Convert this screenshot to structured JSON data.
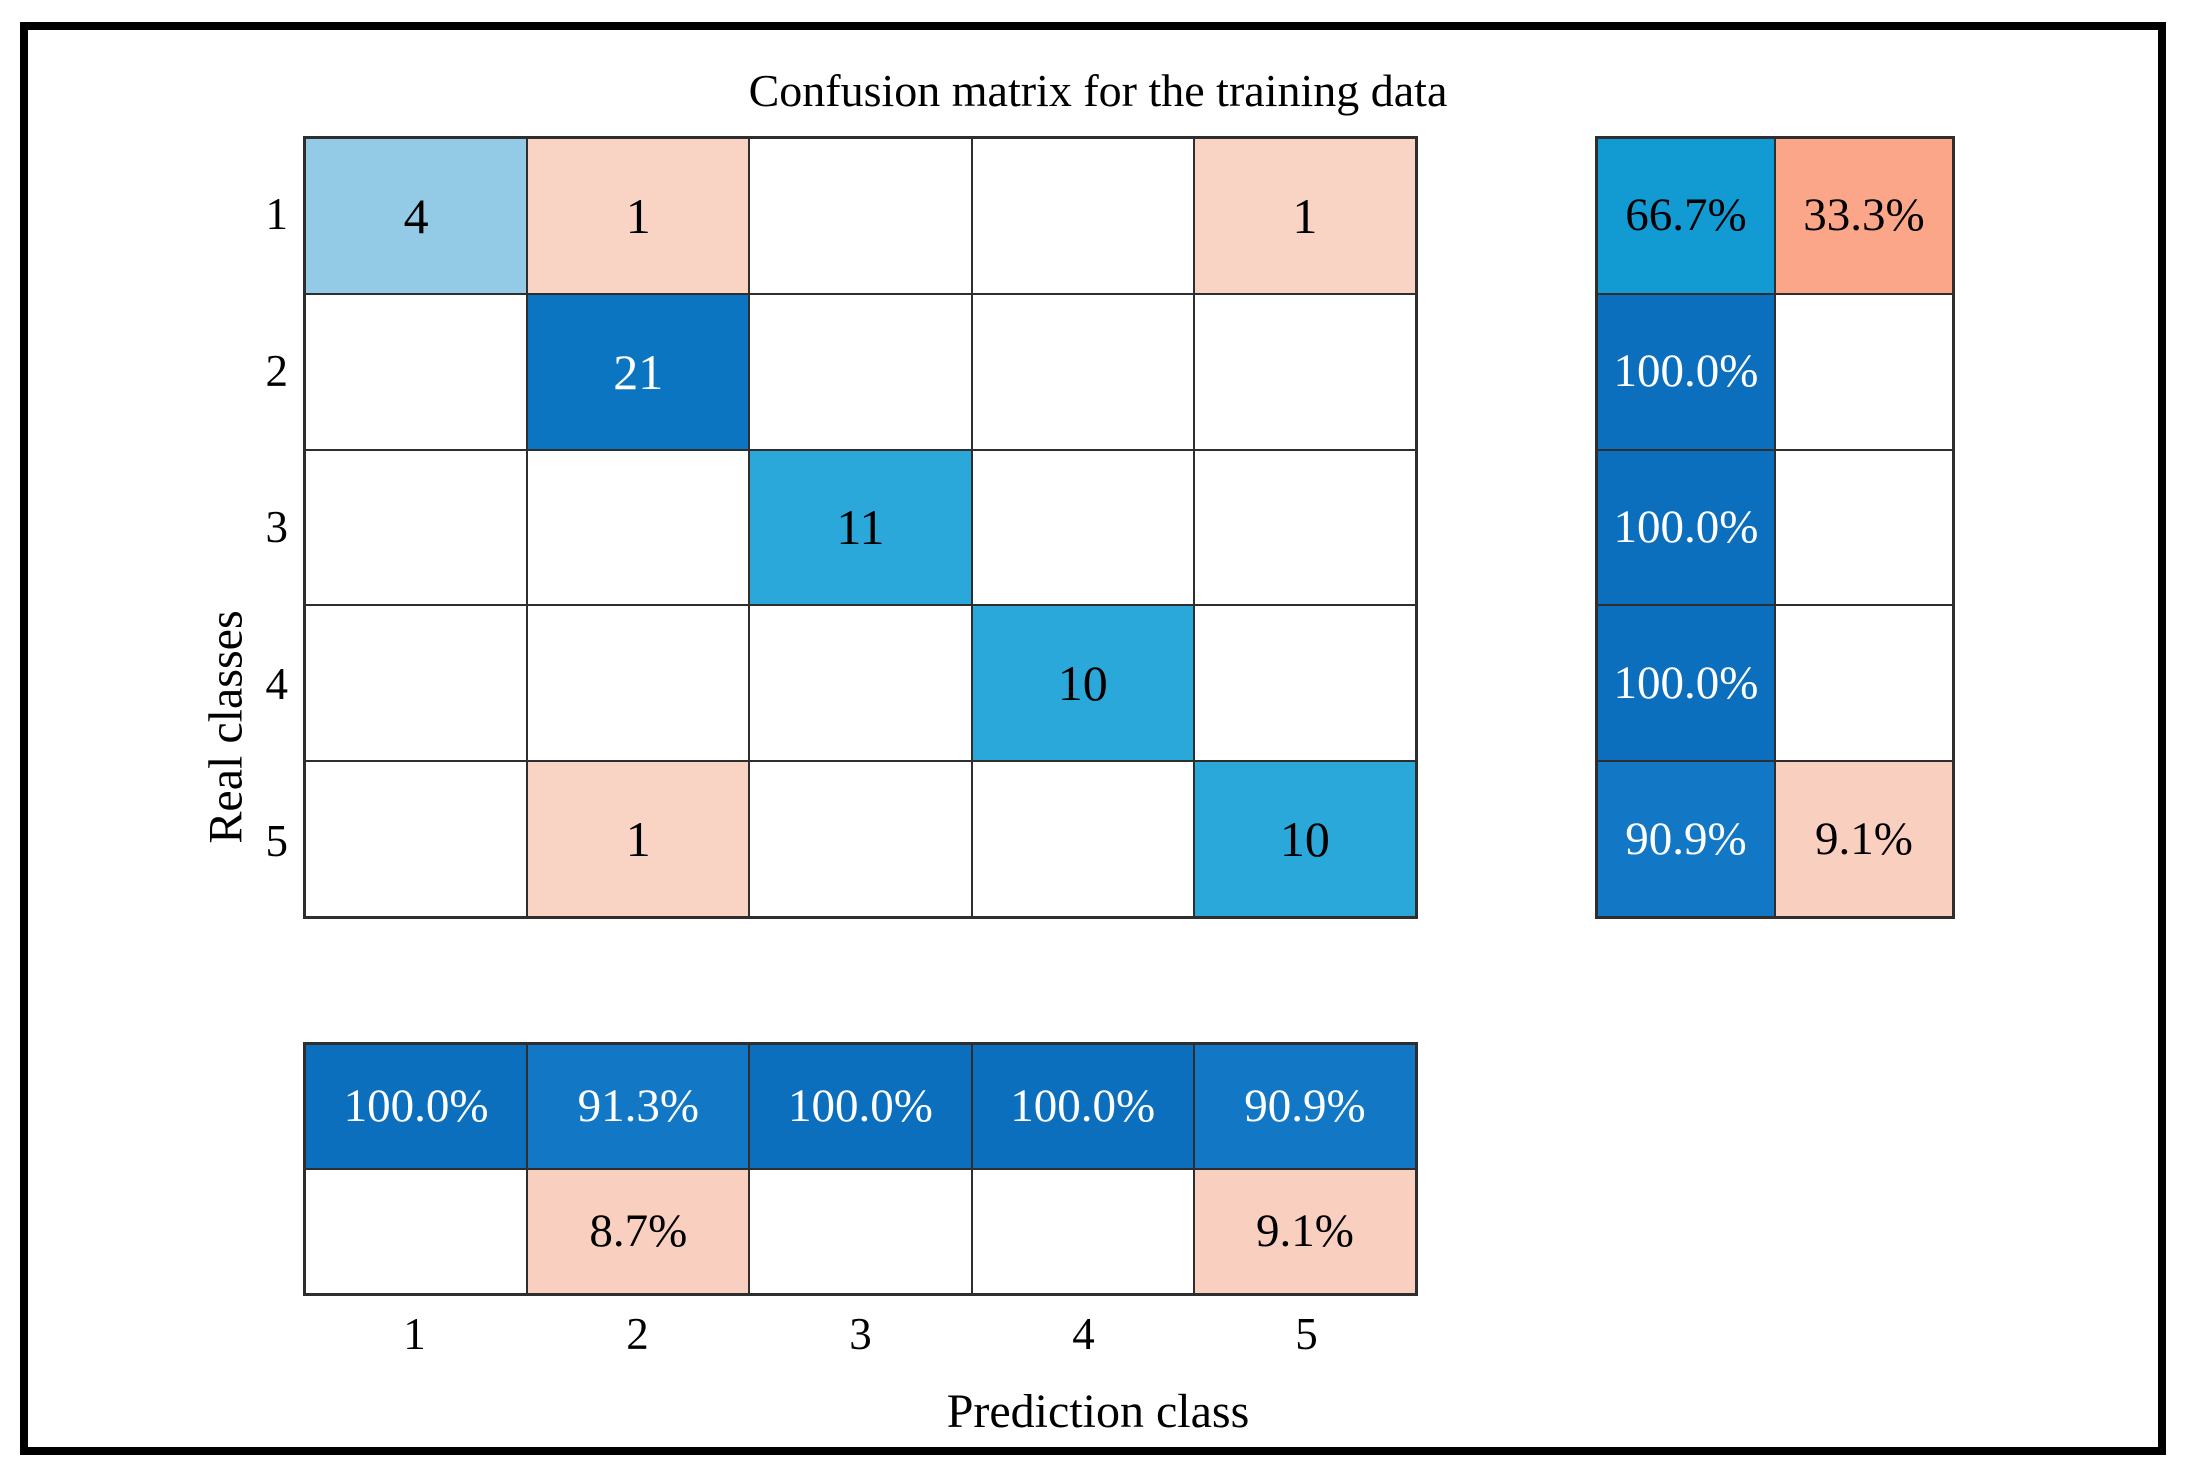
{
  "figure": {
    "title": "Confusion matrix for the training data",
    "x_axis_label": "Prediction class",
    "y_axis_label": "Real classes"
  },
  "colors": {
    "grid_line": "#2E2E2E",
    "figure_border": "#000000",
    "sky_blue": "#93CAE6",
    "bright_blue": "#0B75C2",
    "cyan_blue": "#29A8D9",
    "teal_blue": "#129AD3",
    "deep_blue": "#0C6FBD",
    "mid_blue": "#1278C5",
    "salmon": "#FBA689",
    "light_pink": "#F9D4C5",
    "pale_pink": "#F9CFBF",
    "white": "#FFFFFF",
    "black": "#000000"
  },
  "axis": {
    "row_tick_labels": [
      "1",
      "2",
      "3",
      "4",
      "5"
    ],
    "col_tick_labels": [
      "1",
      "2",
      "3",
      "4",
      "5"
    ]
  },
  "chart_data": {
    "type": "heatmap",
    "title": "Confusion matrix for the training data",
    "xlabel": "Prediction class",
    "ylabel": "Real classes",
    "classes": [
      "1",
      "2",
      "3",
      "4",
      "5"
    ],
    "confusion_matrix_counts": [
      [
        4,
        1,
        0,
        0,
        1
      ],
      [
        0,
        21,
        0,
        0,
        0
      ],
      [
        0,
        0,
        11,
        0,
        0
      ],
      [
        0,
        0,
        0,
        10,
        0
      ],
      [
        0,
        1,
        0,
        0,
        10
      ]
    ],
    "row_summary_percentages": {
      "correct": [
        "66.7%",
        "100.0%",
        "100.0%",
        "100.0%",
        "90.9%"
      ],
      "incorrect": [
        "33.3%",
        "",
        "",
        "",
        "9.1%"
      ]
    },
    "column_summary_percentages": {
      "correct": [
        "100.0%",
        "91.3%",
        "100.0%",
        "100.0%",
        "90.9%"
      ],
      "incorrect": [
        "",
        "8.7%",
        "",
        "",
        "9.1%"
      ]
    },
    "legend_position": "none",
    "grid": true
  },
  "main_matrix_cells": [
    [
      {
        "text": "4",
        "bg": "#93CAE6",
        "fg": "#000000"
      },
      {
        "text": "1",
        "bg": "#F9D4C5",
        "fg": "#000000"
      },
      {
        "text": "",
        "bg": "#FFFFFF",
        "fg": "#000000"
      },
      {
        "text": "",
        "bg": "#FFFFFF",
        "fg": "#000000"
      },
      {
        "text": "1",
        "bg": "#F9D4C5",
        "fg": "#000000"
      }
    ],
    [
      {
        "text": "",
        "bg": "#FFFFFF",
        "fg": "#000000"
      },
      {
        "text": "21",
        "bg": "#0B75C2",
        "fg": "#FFFFFF"
      },
      {
        "text": "",
        "bg": "#FFFFFF",
        "fg": "#000000"
      },
      {
        "text": "",
        "bg": "#FFFFFF",
        "fg": "#000000"
      },
      {
        "text": "",
        "bg": "#FFFFFF",
        "fg": "#000000"
      }
    ],
    [
      {
        "text": "",
        "bg": "#FFFFFF",
        "fg": "#000000"
      },
      {
        "text": "",
        "bg": "#FFFFFF",
        "fg": "#000000"
      },
      {
        "text": "11",
        "bg": "#29A8D9",
        "fg": "#000000"
      },
      {
        "text": "",
        "bg": "#FFFFFF",
        "fg": "#000000"
      },
      {
        "text": "",
        "bg": "#FFFFFF",
        "fg": "#000000"
      }
    ],
    [
      {
        "text": "",
        "bg": "#FFFFFF",
        "fg": "#000000"
      },
      {
        "text": "",
        "bg": "#FFFFFF",
        "fg": "#000000"
      },
      {
        "text": "",
        "bg": "#FFFFFF",
        "fg": "#000000"
      },
      {
        "text": "10",
        "bg": "#29A8D9",
        "fg": "#000000"
      },
      {
        "text": "",
        "bg": "#FFFFFF",
        "fg": "#000000"
      }
    ],
    [
      {
        "text": "",
        "bg": "#FFFFFF",
        "fg": "#000000"
      },
      {
        "text": "1",
        "bg": "#F9D4C5",
        "fg": "#000000"
      },
      {
        "text": "",
        "bg": "#FFFFFF",
        "fg": "#000000"
      },
      {
        "text": "",
        "bg": "#FFFFFF",
        "fg": "#000000"
      },
      {
        "text": "10",
        "bg": "#29A8D9",
        "fg": "#000000"
      }
    ]
  ],
  "row_summary_cells": [
    [
      {
        "text": "66.7%",
        "bg": "#129AD3",
        "fg": "#000000"
      },
      {
        "text": "33.3%",
        "bg": "#FBA689",
        "fg": "#000000"
      }
    ],
    [
      {
        "text": "100.0%",
        "bg": "#0C6FBD",
        "fg": "#FFFFFF"
      },
      {
        "text": "",
        "bg": "#FFFFFF",
        "fg": "#000000"
      }
    ],
    [
      {
        "text": "100.0%",
        "bg": "#0C6FBD",
        "fg": "#FFFFFF"
      },
      {
        "text": "",
        "bg": "#FFFFFF",
        "fg": "#000000"
      }
    ],
    [
      {
        "text": "100.0%",
        "bg": "#0C6FBD",
        "fg": "#FFFFFF"
      },
      {
        "text": "",
        "bg": "#FFFFFF",
        "fg": "#000000"
      }
    ],
    [
      {
        "text": "90.9%",
        "bg": "#1278C5",
        "fg": "#FFFFFF"
      },
      {
        "text": "9.1%",
        "bg": "#F9CFBF",
        "fg": "#000000"
      }
    ]
  ],
  "col_summary_cells": [
    [
      {
        "text": "100.0%",
        "bg": "#0C6FBD",
        "fg": "#FFFFFF"
      },
      {
        "text": "91.3%",
        "bg": "#1278C5",
        "fg": "#FFFFFF"
      },
      {
        "text": "100.0%",
        "bg": "#0C6FBD",
        "fg": "#FFFFFF"
      },
      {
        "text": "100.0%",
        "bg": "#0C6FBD",
        "fg": "#FFFFFF"
      },
      {
        "text": "90.9%",
        "bg": "#1278C5",
        "fg": "#FFFFFF"
      }
    ],
    [
      {
        "text": "",
        "bg": "#FFFFFF",
        "fg": "#000000"
      },
      {
        "text": "8.7%",
        "bg": "#F9CFBF",
        "fg": "#000000"
      },
      {
        "text": "",
        "bg": "#FFFFFF",
        "fg": "#000000"
      },
      {
        "text": "",
        "bg": "#FFFFFF",
        "fg": "#000000"
      },
      {
        "text": "9.1%",
        "bg": "#F9CFBF",
        "fg": "#000000"
      }
    ]
  ]
}
